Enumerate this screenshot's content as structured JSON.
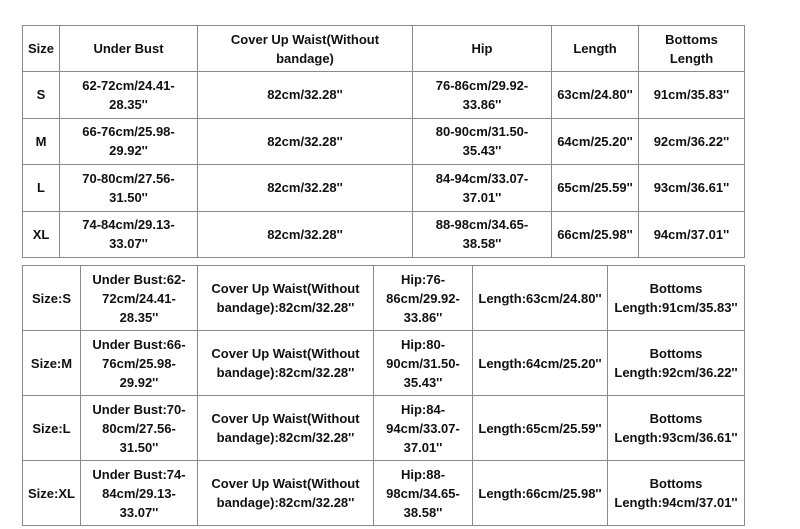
{
  "table1": {
    "headers": [
      "Size",
      "Under Bust",
      "Cover Up Waist(Without bandage)",
      "Hip",
      "Length",
      "Bottoms Length"
    ],
    "rows": [
      [
        "S",
        "62-72cm/24.41-28.35''",
        "82cm/32.28''",
        "76-86cm/29.92-33.86''",
        "63cm/24.80''",
        "91cm/35.83''"
      ],
      [
        "M",
        "66-76cm/25.98-29.92''",
        "82cm/32.28''",
        "80-90cm/31.50-35.43''",
        "64cm/25.20''",
        "92cm/36.22''"
      ],
      [
        "L",
        "70-80cm/27.56-31.50''",
        "82cm/32.28''",
        "84-94cm/33.07-37.01''",
        "65cm/25.59''",
        "93cm/36.61''"
      ],
      [
        "XL",
        "74-84cm/29.13-33.07''",
        "82cm/32.28''",
        "88-98cm/34.65-38.58''",
        "66cm/25.98''",
        "94cm/37.01''"
      ]
    ]
  },
  "table2": {
    "rows": [
      [
        "Size:S",
        "Under Bust:62-72cm/24.41-28.35''",
        "Cover Up Waist(Without bandage):82cm/32.28''",
        "Hip:76-86cm/29.92-33.86''",
        "Length:63cm/24.80''",
        "Bottoms Length:91cm/35.83''"
      ],
      [
        "Size:M",
        "Under Bust:66-76cm/25.98-29.92''",
        "Cover Up Waist(Without bandage):82cm/32.28''",
        "Hip:80-90cm/31.50-35.43''",
        "Length:64cm/25.20''",
        "Bottoms Length:92cm/36.22''"
      ],
      [
        "Size:L",
        "Under Bust:70-80cm/27.56-31.50''",
        "Cover Up Waist(Without bandage):82cm/32.28''",
        "Hip:84-94cm/33.07-37.01''",
        "Length:65cm/25.59''",
        "Bottoms Length:93cm/36.61''"
      ],
      [
        "Size:XL",
        "Under Bust:74-84cm/29.13-33.07''",
        "Cover Up Waist(Without bandage):82cm/32.28''",
        "Hip:88-98cm/34.65-38.58''",
        "Length:66cm/25.98''",
        "Bottoms Length:94cm/37.01''"
      ]
    ]
  }
}
